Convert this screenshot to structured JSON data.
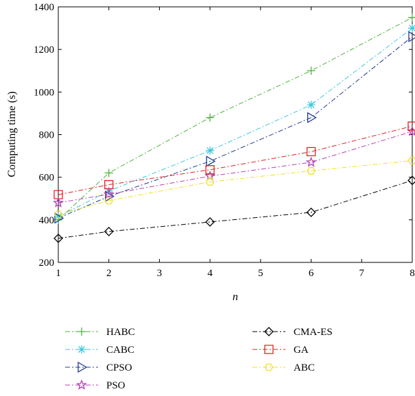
{
  "chart_data": {
    "type": "line",
    "xlabel": "n",
    "ylabel": "Computing time (s)",
    "xlim": [
      1,
      8
    ],
    "ylim": [
      200,
      1400
    ],
    "xticks": [
      1,
      2,
      3,
      4,
      5,
      6,
      7,
      8
    ],
    "yticks": [
      200,
      400,
      600,
      800,
      1000,
      1200,
      1400
    ],
    "x": [
      1,
      2,
      4,
      6,
      8
    ],
    "grid": false,
    "legend_position": "below",
    "series": [
      {
        "name": "HABC",
        "color": "#4db33d",
        "marker": "plus",
        "values": [
          400,
          620,
          880,
          1100,
          1350
        ]
      },
      {
        "name": "CABC",
        "color": "#3fc7dd",
        "marker": "asterisk",
        "values": [
          415,
          535,
          725,
          940,
          1300
        ]
      },
      {
        "name": "CPSO",
        "color": "#1f3a8f",
        "marker": "triangle-right",
        "values": [
          408,
          510,
          675,
          880,
          1260
        ]
      },
      {
        "name": "PSO",
        "color": "#b440b4",
        "marker": "star",
        "values": [
          480,
          520,
          605,
          670,
          815
        ]
      },
      {
        "name": "CMA-ES",
        "color": "#000000",
        "marker": "diamond",
        "values": [
          313,
          345,
          390,
          435,
          585
        ]
      },
      {
        "name": "GA",
        "color": "#e02020",
        "marker": "square",
        "values": [
          518,
          565,
          635,
          720,
          840
        ]
      },
      {
        "name": "ABC",
        "color": "#f0e020",
        "marker": "hexagon",
        "values": [
          425,
          490,
          578,
          630,
          678
        ]
      }
    ]
  }
}
